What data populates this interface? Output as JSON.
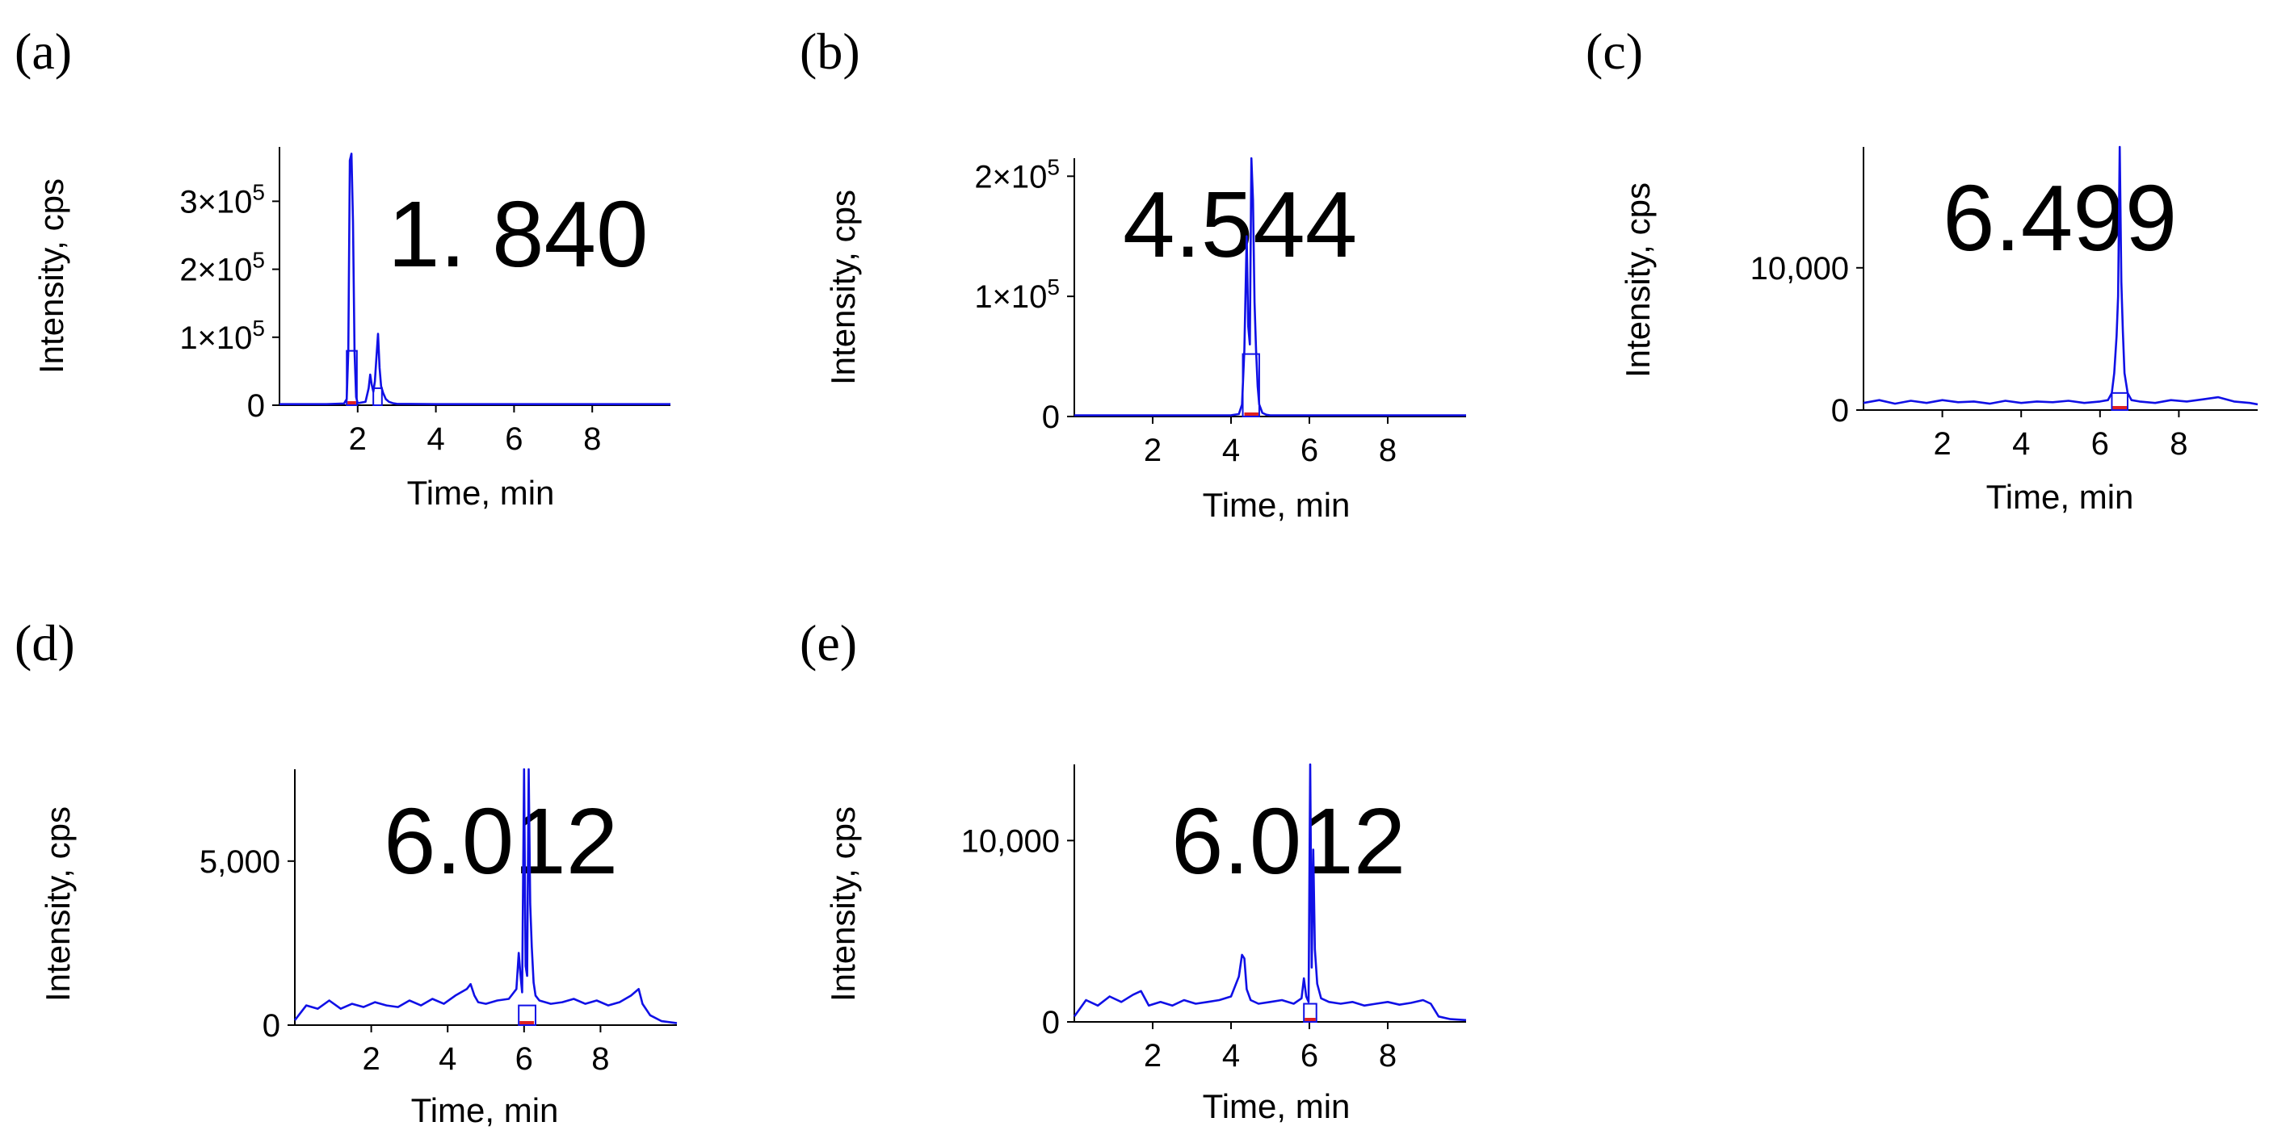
{
  "figure": {
    "background": "#ffffff",
    "trace_color": "#1010e6",
    "baseline_marker_color": "#e02020",
    "axis_color": "#000000"
  },
  "chart_data": [
    {
      "panel_label": "(a)",
      "type": "line",
      "title": "",
      "annotation": "1. 840",
      "xlabel": "Time, min",
      "ylabel": "Intensity, cps",
      "xlim": [
        0,
        10
      ],
      "ylim": [
        0,
        380000
      ],
      "x_ticks": [
        2,
        4,
        6,
        8
      ],
      "x_tick_labels": [
        "2",
        "4",
        "6",
        "8"
      ],
      "y_ticks": [
        0,
        100000,
        200000,
        300000
      ],
      "y_tick_labels": [
        {
          "text": "0",
          "base": "",
          "exp": ""
        },
        {
          "text": "",
          "base": "1×10",
          "exp": "5"
        },
        {
          "text": "",
          "base": "2×10",
          "exp": "5"
        },
        {
          "text": "",
          "base": "3×10",
          "exp": "5"
        }
      ],
      "series": [
        {
          "name": "trace",
          "x": [
            0.0,
            1.2,
            1.65,
            1.72,
            1.76,
            1.8,
            1.84,
            1.88,
            1.92,
            1.96,
            2.0,
            2.2,
            2.28,
            2.32,
            2.36,
            2.4,
            2.44,
            2.48,
            2.52,
            2.56,
            2.6,
            2.65,
            2.72,
            2.8,
            2.9,
            3.0,
            4.0,
            6.0,
            8.0,
            10.0
          ],
          "y": [
            1500,
            1500,
            2500,
            9000,
            80000,
            360000,
            370000,
            270000,
            80000,
            12000,
            3000,
            5000,
            25000,
            45000,
            30000,
            20000,
            35000,
            70000,
            105000,
            55000,
            28000,
            18000,
            9000,
            5000,
            3000,
            2000,
            1500,
            1500,
            1500,
            1500
          ]
        }
      ],
      "integration_peaks": [
        {
          "x_start": 1.72,
          "x_end": 1.98,
          "y": 80000
        },
        {
          "x_start": 2.4,
          "x_end": 2.62,
          "y": 25000
        }
      ],
      "baseline_marker_x": [
        1.74,
        1.96
      ]
    },
    {
      "panel_label": "(b)",
      "type": "line",
      "title": "",
      "annotation": "4.544",
      "xlabel": "Time, min",
      "ylabel": "Intensity, cps",
      "xlim": [
        0,
        10
      ],
      "ylim": [
        0,
        215000
      ],
      "x_ticks": [
        2,
        4,
        6,
        8
      ],
      "x_tick_labels": [
        "2",
        "4",
        "6",
        "8"
      ],
      "y_ticks": [
        0,
        100000,
        200000
      ],
      "y_tick_labels": [
        {
          "text": "0",
          "base": "",
          "exp": ""
        },
        {
          "text": "",
          "base": "1×10",
          "exp": "5"
        },
        {
          "text": "",
          "base": "2×10",
          "exp": "5"
        }
      ],
      "series": [
        {
          "name": "trace",
          "x": [
            0.0,
            4.0,
            4.2,
            4.28,
            4.34,
            4.4,
            4.44,
            4.48,
            4.52,
            4.56,
            4.6,
            4.64,
            4.68,
            4.72,
            4.8,
            4.9,
            5.0,
            6.0,
            8.0,
            10.0
          ],
          "y": [
            1000,
            1000,
            2000,
            10000,
            55000,
            150000,
            75000,
            60000,
            215000,
            180000,
            95000,
            55000,
            25000,
            10000,
            3000,
            1500,
            1000,
            1000,
            1000,
            1000
          ]
        }
      ],
      "integration_peaks": [
        {
          "x_start": 4.3,
          "x_end": 4.72,
          "y": 52000
        }
      ],
      "baseline_marker_x": [
        4.34,
        4.7
      ]
    },
    {
      "panel_label": "(c)",
      "type": "line",
      "title": "",
      "annotation": "6.499",
      "xlabel": "Time, min",
      "ylabel": "Intensity, cps",
      "xlim": [
        0,
        10
      ],
      "ylim": [
        0,
        18500
      ],
      "x_ticks": [
        2,
        4,
        6,
        8
      ],
      "x_tick_labels": [
        "2",
        "4",
        "6",
        "8"
      ],
      "y_ticks": [
        0,
        10000
      ],
      "y_tick_labels": [
        {
          "text": "0",
          "base": "",
          "exp": ""
        },
        {
          "text": "10,000",
          "base": "",
          "exp": ""
        }
      ],
      "series": [
        {
          "name": "trace",
          "x": [
            0.0,
            0.4,
            0.8,
            1.2,
            1.6,
            2.0,
            2.4,
            2.8,
            3.2,
            3.6,
            4.0,
            4.4,
            4.8,
            5.2,
            5.6,
            6.0,
            6.2,
            6.3,
            6.36,
            6.42,
            6.46,
            6.5,
            6.54,
            6.58,
            6.62,
            6.7,
            6.8,
            7.0,
            7.4,
            7.8,
            8.2,
            8.6,
            9.0,
            9.4,
            9.8,
            10.0
          ],
          "y": [
            500,
            700,
            450,
            650,
            500,
            700,
            550,
            600,
            450,
            650,
            500,
            600,
            550,
            650,
            500,
            600,
            700,
            1200,
            2600,
            5200,
            8000,
            18500,
            9000,
            5500,
            2600,
            1200,
            700,
            600,
            500,
            700,
            600,
            750,
            900,
            600,
            500,
            400
          ]
        }
      ],
      "integration_peaks": [
        {
          "x_start": 6.3,
          "x_end": 6.7,
          "y": 1200
        }
      ],
      "baseline_marker_x": [
        6.32,
        6.68
      ]
    },
    {
      "panel_label": "(d)",
      "type": "line",
      "title": "",
      "annotation": "6.012",
      "xlabel": "Time, min",
      "ylabel": "Intensity, cps",
      "xlim": [
        0,
        10
      ],
      "ylim": [
        0,
        7800
      ],
      "x_ticks": [
        2,
        4,
        6,
        8
      ],
      "x_tick_labels": [
        "2",
        "4",
        "6",
        "8"
      ],
      "y_ticks": [
        0,
        5000
      ],
      "y_tick_labels": [
        {
          "text": "0",
          "base": "",
          "exp": ""
        },
        {
          "text": "5,000",
          "base": "",
          "exp": ""
        }
      ],
      "series": [
        {
          "name": "trace",
          "x": [
            0.0,
            0.3,
            0.6,
            0.9,
            1.2,
            1.5,
            1.8,
            2.1,
            2.4,
            2.7,
            3.0,
            3.3,
            3.6,
            3.9,
            4.2,
            4.5,
            4.6,
            4.7,
            4.8,
            5.0,
            5.3,
            5.6,
            5.8,
            5.86,
            5.9,
            5.95,
            6.0,
            6.04,
            6.08,
            6.12,
            6.16,
            6.2,
            6.25,
            6.3,
            6.4,
            6.7,
            7.0,
            7.3,
            7.6,
            7.9,
            8.2,
            8.5,
            8.8,
            9.0,
            9.1,
            9.3,
            9.6,
            10.0
          ],
          "y": [
            150,
            600,
            500,
            750,
            500,
            650,
            550,
            700,
            600,
            550,
            750,
            600,
            800,
            650,
            900,
            1100,
            1250,
            900,
            700,
            650,
            750,
            800,
            1100,
            2200,
            1600,
            1000,
            7800,
            1800,
            1500,
            7800,
            3700,
            2400,
            1300,
            900,
            750,
            650,
            700,
            800,
            650,
            750,
            600,
            700,
            900,
            1100,
            650,
            300,
            120,
            60
          ]
        }
      ],
      "integration_peaks": [
        {
          "x_start": 5.86,
          "x_end": 6.3,
          "y": 600
        }
      ],
      "baseline_marker_x": [
        5.88,
        6.26
      ]
    },
    {
      "panel_label": "(e)",
      "type": "line",
      "title": "",
      "annotation": "6.012",
      "xlabel": "Time, min",
      "ylabel": "Intensity, cps",
      "xlim": [
        0,
        10
      ],
      "ylim": [
        0,
        14200
      ],
      "x_ticks": [
        2,
        4,
        6,
        8
      ],
      "x_tick_labels": [
        "2",
        "4",
        "6",
        "8"
      ],
      "y_ticks": [
        0,
        10000
      ],
      "y_tick_labels": [
        {
          "text": "0",
          "base": "",
          "exp": ""
        },
        {
          "text": "10,000",
          "base": "",
          "exp": ""
        }
      ],
      "series": [
        {
          "name": "trace",
          "x": [
            0.0,
            0.3,
            0.6,
            0.9,
            1.2,
            1.5,
            1.7,
            1.9,
            2.2,
            2.5,
            2.8,
            3.1,
            3.4,
            3.7,
            4.0,
            4.2,
            4.28,
            4.34,
            4.4,
            4.5,
            4.7,
            5.0,
            5.3,
            5.6,
            5.8,
            5.86,
            5.92,
            5.98,
            6.02,
            6.06,
            6.1,
            6.14,
            6.2,
            6.3,
            6.5,
            6.8,
            7.1,
            7.4,
            7.7,
            8.0,
            8.3,
            8.6,
            8.9,
            9.1,
            9.3,
            9.6,
            10.0
          ],
          "y": [
            300,
            1200,
            900,
            1400,
            1100,
            1500,
            1700,
            900,
            1100,
            900,
            1200,
            1000,
            1100,
            1200,
            1400,
            2500,
            3700,
            3500,
            1800,
            1200,
            1000,
            1100,
            1200,
            1000,
            1300,
            2400,
            1400,
            1100,
            14200,
            3000,
            9500,
            4000,
            2100,
            1300,
            1100,
            1000,
            1100,
            900,
            1000,
            1100,
            950,
            1050,
            1200,
            1000,
            300,
            150,
            100
          ]
        }
      ],
      "integration_peaks": [
        {
          "x_start": 5.86,
          "x_end": 6.18,
          "y": 1000
        }
      ],
      "baseline_marker_x": [
        5.88,
        6.16
      ]
    }
  ]
}
